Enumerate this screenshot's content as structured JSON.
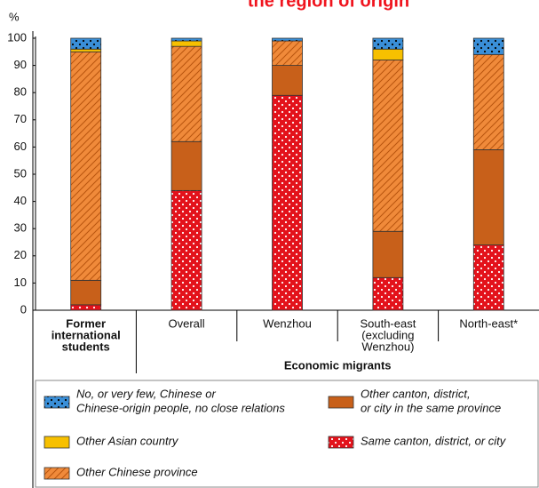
{
  "chart_data": {
    "type": "stacked-bar",
    "title": "the region of origin",
    "y_unit": "%",
    "categories": [
      [
        "Former",
        "international",
        "students"
      ],
      [
        "Overall"
      ],
      [
        "Wenzhou"
      ],
      [
        "South-east",
        "(excluding",
        "Wenzhou)"
      ],
      [
        "North-east*"
      ]
    ],
    "group_label": "Economic migrants",
    "ylim": [
      0,
      100
    ],
    "yticks": [
      0,
      10,
      20,
      30,
      40,
      50,
      60,
      70,
      80,
      90,
      100
    ],
    "series": [
      {
        "name": [
          "Same canton, district, or city"
        ],
        "color": "#e3121b",
        "pattern": "dots-light",
        "values": [
          2,
          44,
          79,
          12,
          24
        ]
      },
      {
        "name": [
          "Other canton, district,",
          "or city in the same province"
        ],
        "color": "#c8601a",
        "pattern": "solid",
        "values": [
          9,
          18,
          11,
          17,
          35
        ]
      },
      {
        "name": [
          "Other Chinese province"
        ],
        "color": "#f08a3a",
        "pattern": "hatch",
        "values": [
          84,
          35,
          9,
          63,
          35
        ]
      },
      {
        "name": [
          "Other Asian country"
        ],
        "color": "#f7c000",
        "pattern": "solid",
        "values": [
          1,
          2,
          0,
          4,
          0
        ]
      },
      {
        "name": [
          "No, or very few, Chinese or",
          "Chinese-origin people, no close relations"
        ],
        "color": "#3a8fd8",
        "pattern": "dots-dark",
        "values": [
          4,
          1,
          1,
          4,
          6
        ]
      }
    ]
  }
}
